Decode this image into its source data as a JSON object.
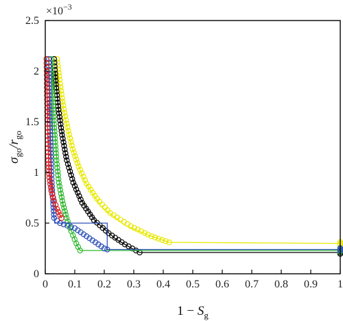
{
  "chart_data": {
    "type": "scatter",
    "title": "",
    "xlabel": "1 − S",
    "xlabel_sub": "g",
    "ylabel": "σ",
    "ylabel_sub1": "go",
    "ylabel_mid": "/r",
    "ylabel_sub2": "go",
    "y_multiplier": "×10",
    "y_multiplier_exp": "−3",
    "xlim": [
      0,
      1
    ],
    "ylim": [
      0,
      2.5
    ],
    "x_ticks": [
      "0",
      "0.1",
      "0.2",
      "0.3",
      "0.4",
      "0.5",
      "0.6",
      "0.7",
      "0.8",
      "0.9",
      "1"
    ],
    "y_ticks": [
      "0",
      "0.5",
      "1",
      "1.5",
      "2",
      "2.5"
    ],
    "grid": false,
    "legend": "none",
    "series": [
      {
        "color": "#e8e800",
        "marker": "open-circle",
        "points": [
          [
            0.04,
            2.12
          ],
          [
            0.047,
            1.95
          ],
          [
            0.055,
            1.77
          ],
          [
            0.065,
            1.59
          ],
          [
            0.078,
            1.41
          ],
          [
            0.093,
            1.23
          ],
          [
            0.113,
            1.06
          ],
          [
            0.14,
            0.89
          ],
          [
            0.175,
            0.74
          ],
          [
            0.22,
            0.6
          ],
          [
            0.29,
            0.47
          ],
          [
            0.36,
            0.37
          ],
          [
            0.42,
            0.31
          ]
        ],
        "line": [
          [
            0.043,
            2.0
          ],
          [
            0.052,
            1.8
          ],
          [
            0.066,
            1.55
          ],
          [
            0.09,
            1.25
          ],
          [
            0.13,
            0.93
          ],
          [
            0.19,
            0.66
          ],
          [
            0.27,
            0.48
          ],
          [
            0.35,
            0.38
          ],
          [
            0.42,
            0.31
          ],
          [
            1.0,
            0.3
          ]
        ],
        "plateau_x": [
          0.42,
          1.0
        ],
        "plateau_y": 0.3
      },
      {
        "color": "#000000",
        "marker": "open-circle",
        "points": [
          [
            0.03,
            2.12
          ],
          [
            0.036,
            1.87
          ],
          [
            0.045,
            1.62
          ],
          [
            0.057,
            1.37
          ],
          [
            0.073,
            1.12
          ],
          [
            0.095,
            0.9
          ],
          [
            0.125,
            0.7
          ],
          [
            0.165,
            0.53
          ],
          [
            0.215,
            0.4
          ],
          [
            0.27,
            0.29
          ],
          [
            0.32,
            0.21
          ]
        ],
        "line": [
          [
            0.033,
            2.0
          ],
          [
            0.045,
            1.62
          ],
          [
            0.07,
            1.15
          ],
          [
            0.11,
            0.78
          ],
          [
            0.17,
            0.52
          ],
          [
            0.24,
            0.34
          ],
          [
            0.3,
            0.24
          ],
          [
            0.32,
            0.21
          ],
          [
            1.0,
            0.21
          ]
        ],
        "plateau_x": [
          0.32,
          1.0
        ],
        "plateau_y": 0.21
      },
      {
        "color": "#2fb82f",
        "marker": "open-circle",
        "points": [
          [
            0.02,
            2.12
          ],
          [
            0.023,
            1.87
          ],
          [
            0.027,
            1.62
          ],
          [
            0.032,
            1.37
          ],
          [
            0.038,
            1.12
          ],
          [
            0.046,
            0.9
          ],
          [
            0.058,
            0.72
          ],
          [
            0.072,
            0.55
          ],
          [
            0.088,
            0.42
          ],
          [
            0.105,
            0.3
          ],
          [
            0.118,
            0.23
          ]
        ],
        "line": [
          [
            0.022,
            2.0
          ],
          [
            0.03,
            1.5
          ],
          [
            0.042,
            1.02
          ],
          [
            0.06,
            0.68
          ],
          [
            0.085,
            0.45
          ],
          [
            0.11,
            0.27
          ],
          [
            0.118,
            0.23
          ],
          [
            1.0,
            0.23
          ]
        ],
        "plateau_x": [
          0.118,
          1.0
        ],
        "plateau_y": 0.23
      },
      {
        "color": "#2b4fb8",
        "marker": "open-circle",
        "points": [
          [
            0.012,
            2.12
          ],
          [
            0.013,
            1.87
          ],
          [
            0.015,
            1.62
          ],
          [
            0.017,
            1.37
          ],
          [
            0.019,
            1.12
          ],
          [
            0.022,
            0.9
          ],
          [
            0.026,
            0.72
          ],
          [
            0.03,
            0.55
          ],
          [
            0.05,
            0.5
          ],
          [
            0.1,
            0.45
          ],
          [
            0.15,
            0.35
          ],
          [
            0.2,
            0.25
          ],
          [
            0.21,
            0.24
          ]
        ],
        "line": [
          [
            0.013,
            2.0
          ],
          [
            0.017,
            1.4
          ],
          [
            0.022,
            0.95
          ],
          [
            0.028,
            0.6
          ],
          [
            0.032,
            0.5
          ],
          [
            0.21,
            0.5
          ],
          [
            0.21,
            0.24
          ],
          [
            1.0,
            0.24
          ]
        ],
        "plateau_x": [
          0.21,
          1.0
        ],
        "plateau_y": 0.24
      },
      {
        "color": "#dd1f1f",
        "marker": "open-circle",
        "points": [
          [
            0.004,
            2.12
          ],
          [
            0.005,
            1.92
          ],
          [
            0.006,
            1.72
          ],
          [
            0.007,
            1.52
          ],
          [
            0.008,
            1.32
          ],
          [
            0.01,
            1.12
          ],
          [
            0.014,
            0.95
          ],
          [
            0.02,
            0.82
          ],
          [
            0.03,
            0.72
          ],
          [
            0.04,
            0.64
          ],
          [
            0.05,
            0.58
          ],
          [
            0.055,
            0.55
          ]
        ],
        "line": [
          [
            0.005,
            2.0
          ],
          [
            0.008,
            1.4
          ],
          [
            0.013,
            1.0
          ],
          [
            0.025,
            0.76
          ],
          [
            0.04,
            0.63
          ],
          [
            0.055,
            0.55
          ]
        ],
        "plateau_x": [
          0.055,
          0.055
        ],
        "plateau_y": 0.55
      }
    ]
  }
}
